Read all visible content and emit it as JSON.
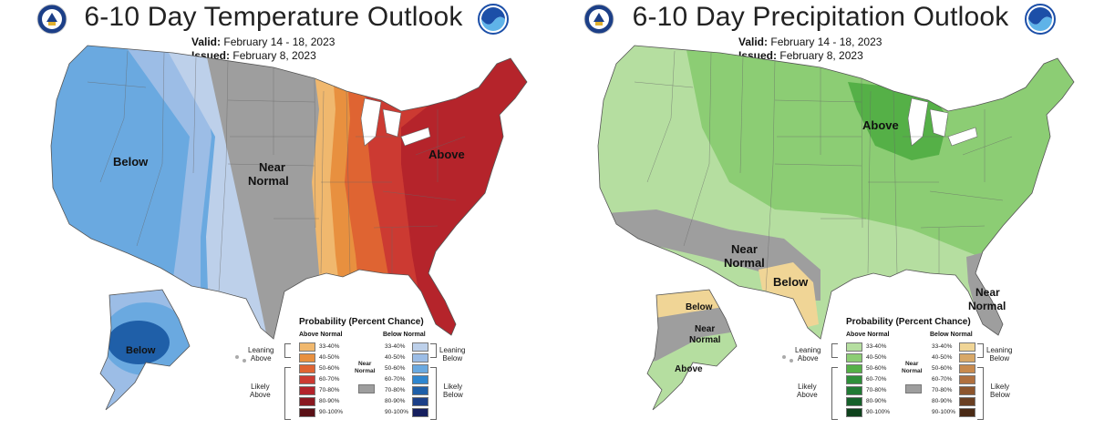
{
  "left": {
    "title": "6-10 Day Temperature Outlook",
    "valid_label": "Valid:",
    "valid_value": "February 14 - 18, 2023",
    "issued_label": "Issued:",
    "issued_value": "February 8, 2023",
    "regions": {
      "below": "Below",
      "near1": "Near",
      "near2": "Normal",
      "above": "Above",
      "alaska_below": "Below"
    },
    "legend": {
      "title": "Probability (Percent Chance)",
      "col_above": "Above Normal",
      "col_below": "Below Normal",
      "near_label1": "Near",
      "near_label2": "Normal",
      "leaning_above": "Leaning\nAbove",
      "likely_above": "Likely\nAbove",
      "leaning_below": "Leaning\nBelow",
      "likely_below": "Likely\nBelow",
      "leaning_above_1": "Leaning",
      "leaning_above_2": "Above",
      "likely_above_1": "Likely",
      "likely_above_2": "Above",
      "leaning_below_1": "Leaning",
      "leaning_below_2": "Below",
      "likely_below_1": "Likely",
      "likely_below_2": "Below",
      "ranges": [
        "33-40%",
        "40-50%",
        "50-60%",
        "60-70%",
        "70-80%",
        "80-90%",
        "90-100%"
      ],
      "above_colors": [
        "#f0b86e",
        "#e8903f",
        "#df6432",
        "#cc3a32",
        "#b3232b",
        "#8a1820",
        "#5a1016"
      ],
      "below_colors": [
        "#bdd0ea",
        "#9cbde6",
        "#6aa9e0",
        "#2f86cf",
        "#1f5fa8",
        "#1c3f87",
        "#161f5e"
      ]
    }
  },
  "right": {
    "title": "6-10 Day Precipitation Outlook",
    "valid_label": "Valid:",
    "valid_value": "February 14 - 18, 2023",
    "issued_label": "Issued:",
    "issued_value": "February 8, 2023",
    "regions": {
      "above": "Above",
      "near1": "Near",
      "near2": "Normal",
      "below": "Below",
      "near_fl1": "Near",
      "near_fl2": "Normal",
      "ak_below": "Below",
      "ak_near1": "Near",
      "ak_near2": "Normal",
      "ak_above": "Above"
    },
    "legend": {
      "title": "Probability (Percent Chance)",
      "col_above": "Above Normal",
      "col_below": "Below Normal",
      "near_label1": "Near",
      "near_label2": "Normal",
      "leaning_above_1": "Leaning",
      "leaning_above_2": "Above",
      "likely_above_1": "Likely",
      "likely_above_2": "Above",
      "leaning_below_1": "Leaning",
      "leaning_below_2": "Below",
      "likely_below_1": "Likely",
      "likely_below_2": "Below",
      "ranges": [
        "33-40%",
        "40-50%",
        "50-60%",
        "60-70%",
        "70-80%",
        "80-90%",
        "90-100%"
      ],
      "above_colors": [
        "#b5dea0",
        "#8ccd74",
        "#55b047",
        "#2f8f3a",
        "#217a34",
        "#16612a",
        "#0e421c"
      ],
      "below_colors": [
        "#f0d596",
        "#d8a868",
        "#c88a4e",
        "#b0703f",
        "#8d552d",
        "#6a3f22",
        "#4a2a15"
      ]
    }
  },
  "colors": {
    "near_normal": "#9e9e9e",
    "ocean": "#ffffff"
  }
}
